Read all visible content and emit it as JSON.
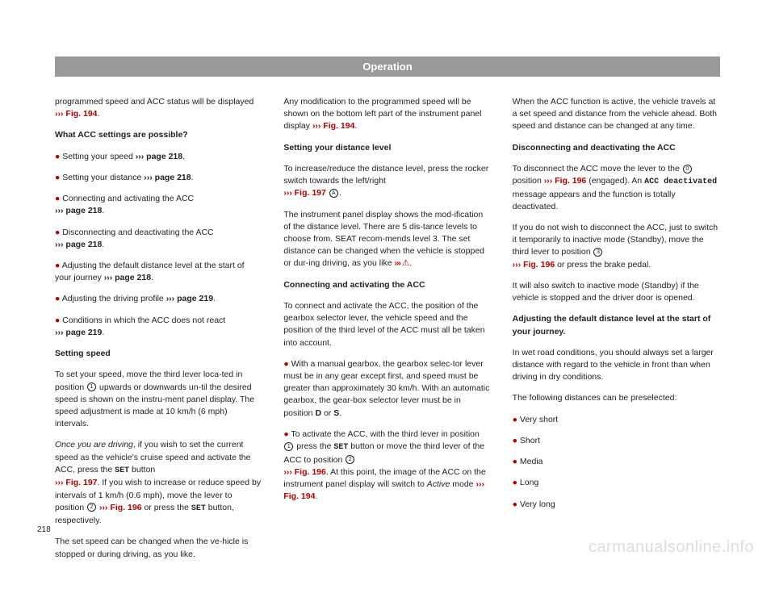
{
  "header": "Operation",
  "pagenum": "218",
  "watermark": "carmanualsonline.info",
  "col1": {
    "p1a": "programmed speed and ACC status will be displayed ",
    "p1b": "››› Fig. 194",
    "p1c": ".",
    "h1": "What ACC settings are possible?",
    "b1a": "Setting your speed ",
    "b1b": "››› page 218",
    "b1c": ".",
    "b2a": "Setting your distance ",
    "b2b": "››› page 218",
    "b2c": ".",
    "b3a": "Connecting and activating the ACC ",
    "b3b": "››› page 218",
    "b3c": ".",
    "b4a": "Disconnecting and deactivating the ACC ",
    "b4b": "››› page 218",
    "b4c": ".",
    "b5a": "Adjusting the default distance level at the start of your journey ",
    "b5b": "››› page 218",
    "b5c": ".",
    "b6a": "Adjusting the driving profile ",
    "b6b": "››› page 219",
    "b6c": ".",
    "b7a": "Conditions in which the ACC does not react ",
    "b7b": "››› page 219",
    "b7c": ".",
    "h2": "Setting speed",
    "p2a": "To set your speed, move the third lever loca-ted in position ",
    "p2circ": "1",
    "p2b": " upwards or downwards un-til the desired speed is shown on the instru-ment panel display. The speed adjustment is made at 10 km/h (6 mph) intervals.",
    "p3a": "Once you are driving",
    "p3b": ", if you wish to set the current speed as the vehicle's cruise speed and activate the ACC, press the ",
    "p3set": "SET",
    "p3c": " button ",
    "p3d": "››› Fig. 197",
    "p3e": ". If you wish to increase or reduce speed by intervals of 1 km/h (0.6 mph), move the lever to position ",
    "p3circ2": "2",
    "p3f": " ",
    "p3g": "››› Fig. 196",
    "p3h": " or press the ",
    "p3set2": "SET",
    "p3i": " button, respectively.",
    "p4": "The set speed can be changed when the ve-hicle is stopped or during driving, as you like."
  },
  "col2": {
    "p1a": "Any modification to the programmed speed will be shown on the bottom left part of the instrument panel display ",
    "p1b": "››› Fig. 194",
    "p1c": ".",
    "h1": "Setting your distance level",
    "p2a": "To increase/reduce the distance level, press the rocker switch towards the left/right ",
    "p2b": "››› Fig. 197 ",
    "p2circ": "A",
    "p2c": ".",
    "p3a": "The instrument panel display shows the mod-ification of the distance level. There are 5 dis-tance levels to choose from. SEAT recom-mends level 3. The set distance can be changed when the vehicle is stopped or dur-ing driving, as you like ",
    "p3b": "››› ",
    "p3warn": "⚠",
    "p3c": ".",
    "h2": "Connecting and activating the ACC",
    "p4": "To connect and activate the ACC, the position of the gearbox selector lever, the vehicle speed and the position of the third level of the ACC must all be taken into account.",
    "p5a": "With a manual gearbox, the gearbox selec-tor lever must be in any gear except first, and speed must be greater than approximately 30 km/h. With an automatic gearbox, the gear-box selector lever must be in position ",
    "p5b": "D",
    "p5c": " or ",
    "p5d": "S",
    "p5e": ".",
    "p6a": "To activate the ACC, with the third lever in position ",
    "p6circ1": "1",
    "p6b": " press the ",
    "p6set": "SET",
    "p6c": " button or move the third lever of the ACC to position ",
    "p6circ2": "2",
    "p6d": " ",
    "p6e": "››› Fig. 196",
    "p6f": ". At this point, the image of the ACC on the instrument panel display will switch to ",
    "p6g": "Active",
    "p6h": " mode ",
    "p6i": "››› Fig. 194",
    "p6j": "."
  },
  "col3": {
    "p1": "When the ACC function is active, the vehicle travels at a set speed and distance from the vehicle ahead. Both speed and distance can be changed at any time.",
    "h1": "Disconnecting and deactivating the ACC",
    "p2a": "To disconnect the ACC move the lever to the ",
    "p2circ": "0",
    "p2b": " position ",
    "p2c": "››› Fig. 196",
    "p2d": " (engaged). An ",
    "p2mono": "ACC deactivated",
    "p2e": " message appears and the function is totally deactivated.",
    "p3a": "If you do not wish to disconnect the ACC, just to switch it temporarily to inactive mode (Standby), move the third lever to position ",
    "p3circ": "3",
    "p3b": " ",
    "p3c": "››› Fig. 196",
    "p3d": " or press the brake pedal.",
    "p4": "It will also switch to inactive mode (Standby) if the vehicle is stopped and the driver door is opened.",
    "h2": "Adjusting the default distance level at the start of your journey.",
    "p5": "In wet road conditions, you should always set a larger distance with regard to the vehicle in front than when driving in dry conditions.",
    "p6": "The following distances can be preselected:",
    "b1": "Very short",
    "b2": "Short",
    "b3": "Media",
    "b4": "Long",
    "b5": "Very long"
  }
}
